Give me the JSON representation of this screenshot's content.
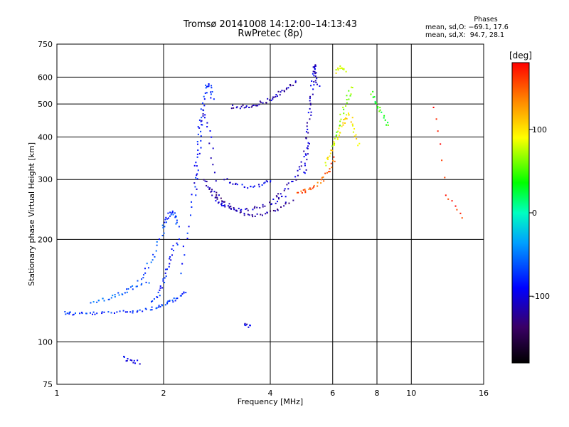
{
  "chart_data": {
    "type": "scatter",
    "title": "Tromsø 20141008 14:12:00–14:13:43",
    "subtitle": "RwPretec (8p)",
    "xlabel": "Frequency [MHz]",
    "ylabel": "Stationary phase Virtual Height [km]",
    "xscale": "log2",
    "yscale": "log",
    "xlim": [
      1,
      16
    ],
    "ylim": [
      75,
      750
    ],
    "x_ticks": [
      1,
      2,
      4,
      6,
      8,
      10,
      16
    ],
    "y_ticks": [
      75,
      100,
      200,
      300,
      400,
      500,
      600,
      750
    ],
    "grid": true,
    "stats": {
      "heading": "Phases",
      "line_o": "mean, sd,O: −69.1, 17.6",
      "line_x": "mean, sd,X:  94.7, 28.1"
    },
    "colorbar": {
      "label": "[deg]",
      "range": [
        -180,
        180
      ],
      "ticks": [
        100,
        0,
        -100
      ],
      "tick_labels": [
        "100",
        "0",
        "-100"
      ]
    },
    "series": [
      {
        "name": "O",
        "traces": [
          {
            "x": [
              1.05,
              1.1,
              1.2,
              1.3,
              1.45,
              1.6,
              1.75,
              1.9,
              2.0,
              2.1,
              2.2,
              2.3
            ],
            "y": [
              122,
              121,
              121,
              121,
              122,
              123,
              124,
              126,
              128,
              131,
              135,
              140
            ],
            "phase": -75
          },
          {
            "x": [
              1.25,
              1.35,
              1.45,
              1.55,
              1.65,
              1.8
            ],
            "y": [
              130,
              133,
              136,
              140,
              145,
              150
            ],
            "phase": -60
          },
          {
            "x": [
              1.7,
              1.8,
              1.9,
              2.0,
              2.05,
              2.1,
              2.15,
              2.2
            ],
            "y": [
              150,
              165,
              185,
              215,
              230,
              240,
              235,
              220
            ],
            "phase": -70
          },
          {
            "x": [
              1.85,
              1.95,
              2.0,
              2.05,
              2.1,
              2.2
            ],
            "y": [
              130,
              140,
              150,
              165,
              180,
              200
            ],
            "phase": -80
          },
          {
            "x": [
              2.25,
              2.35,
              2.45,
              2.5,
              2.55,
              2.6,
              2.65,
              2.7,
              2.75
            ],
            "y": [
              160,
              220,
              300,
              380,
              450,
              520,
              570,
              560,
              520
            ],
            "phase": -80
          },
          {
            "x": [
              2.45,
              2.5,
              2.55,
              2.6,
              2.7,
              2.8
            ],
            "y": [
              270,
              330,
              420,
              480,
              400,
              300
            ],
            "phase": -95
          },
          {
            "x": [
              2.6,
              2.7,
              2.8,
              2.9,
              3.0,
              3.2,
              3.5,
              3.8,
              4.1,
              4.4
            ],
            "y": [
              300,
              280,
              265,
              255,
              250,
              245,
              245,
              250,
              258,
              270
            ],
            "phase": -110
          },
          {
            "x": [
              2.75,
              2.9,
              3.1,
              3.3,
              3.6,
              3.9,
              4.2,
              4.6
            ],
            "y": [
              280,
              262,
              248,
              238,
              236,
              238,
              246,
              260
            ],
            "phase": -120
          },
          {
            "x": [
              3.0,
              3.2,
              3.5,
              3.8,
              4.0
            ],
            "y": [
              300,
              290,
              285,
              290,
              300
            ],
            "phase": -95
          },
          {
            "x": [
              4.1,
              4.4,
              4.7,
              4.9,
              5.1
            ],
            "y": [
              265,
              280,
              300,
              330,
              380
            ],
            "phase": -110
          },
          {
            "x": [
              5.0,
              5.05,
              5.1,
              5.15,
              5.2,
              5.25,
              5.3,
              5.35,
              5.4,
              5.45
            ],
            "y": [
              310,
              350,
              400,
              450,
              500,
              560,
              620,
              650,
              620,
              560
            ],
            "phase": -105
          },
          {
            "x": [
              3.1,
              3.3,
              3.5,
              3.7,
              3.9,
              4.1,
              4.3,
              4.5,
              4.7
            ],
            "y": [
              490,
              490,
              492,
              500,
              510,
              525,
              540,
              560,
              580
            ],
            "phase": -115
          },
          {
            "x": [
              3.4,
              3.5
            ],
            "y": [
              112,
              111
            ],
            "phase": -100
          },
          {
            "x": [
              1.55,
              1.6,
              1.7
            ],
            "y": [
              90,
              88,
              87
            ],
            "phase": -90
          }
        ]
      },
      {
        "name": "X",
        "traces": [
          {
            "x": [
              4.8,
              5.0,
              5.3,
              5.6,
              5.9,
              6.1
            ],
            "y": [
              272,
              278,
              285,
              300,
              320,
              345
            ],
            "phase": 150
          },
          {
            "x": [
              5.7,
              5.9,
              6.1,
              6.3,
              6.5,
              6.7,
              6.9,
              7.1
            ],
            "y": [
              330,
              360,
              390,
              420,
              450,
              470,
              420,
              380
            ],
            "phase": 100
          },
          {
            "x": [
              6.0,
              6.2,
              6.4,
              6.6,
              6.8
            ],
            "y": [
              380,
              420,
              470,
              520,
              560
            ],
            "phase": 60
          },
          {
            "x": [
              6.1,
              6.3,
              6.5
            ],
            "y": [
              620,
              640,
              630
            ],
            "phase": 90
          },
          {
            "x": [
              7.7,
              8.0,
              8.3,
              8.6
            ],
            "y": [
              540,
              500,
              470,
              430
            ],
            "phase": 40
          },
          {
            "x": [
              11.5,
              12.5,
              14.0
            ],
            "y": [
              490,
              270,
              230
            ],
            "phase": 170
          }
        ]
      }
    ]
  }
}
